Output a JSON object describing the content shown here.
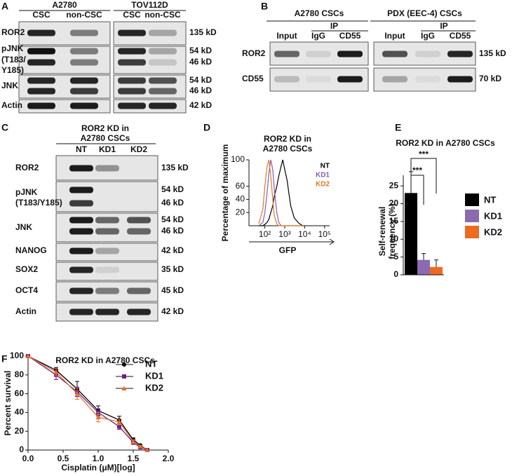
{
  "figure": {
    "a": {
      "letter": "A",
      "groups": [
        {
          "name": "A2780",
          "columns": [
            "CSC",
            "non-CSC"
          ]
        },
        {
          "name": "TOV112D",
          "columns": [
            "CSC",
            "non-CSC"
          ]
        }
      ],
      "rows": [
        {
          "label": [
            "ROR2"
          ],
          "sizes": [
            "135 kD"
          ]
        },
        {
          "label": [
            "pJNK",
            "(T183/",
            "Y185)"
          ],
          "sizes": [
            "54 kD",
            "46 kD"
          ]
        },
        {
          "label": [
            "JNK"
          ],
          "sizes": [
            "54 kD",
            "46 kD"
          ]
        },
        {
          "label": [
            "Actin"
          ],
          "sizes": [
            "42 kD"
          ]
        }
      ]
    },
    "b": {
      "letter": "B",
      "groups": [
        {
          "name": "A2780 CSCs",
          "ip": "IP",
          "columns": [
            "Input",
            "IgG",
            "CD55"
          ]
        },
        {
          "name": "PDX (EEC-4) CSCs",
          "ip": "IP",
          "columns": [
            "Input",
            "IgG",
            "CD55"
          ]
        }
      ],
      "rows": [
        {
          "label": [
            "ROR2"
          ],
          "sizes": [
            "135 kD"
          ]
        },
        {
          "label": [
            "CD55"
          ],
          "sizes": [
            "70 kD"
          ]
        }
      ]
    },
    "c": {
      "letter": "C",
      "title": [
        "ROR2 KD in",
        "A2780 CSCs"
      ],
      "columns": [
        "NT",
        "KD1",
        "KD2"
      ],
      "rows": [
        {
          "label": [
            "ROR2"
          ],
          "sizes": [
            "135 kD"
          ]
        },
        {
          "label": [
            "pJNK",
            "(T183/Y185)"
          ],
          "sizes": [
            "54 kD",
            "46 kD"
          ]
        },
        {
          "label": [
            "JNK"
          ],
          "sizes": [
            "54 kD",
            "46 kD"
          ]
        },
        {
          "label": [
            "NANOG"
          ],
          "sizes": [
            "42 kD"
          ]
        },
        {
          "label": [
            "SOX2"
          ],
          "sizes": [
            "35 kD"
          ]
        },
        {
          "label": [
            "OCT4"
          ],
          "sizes": [
            "45 kD"
          ]
        },
        {
          "label": [
            "Actin"
          ],
          "sizes": [
            "42 kD"
          ]
        }
      ]
    },
    "d": {
      "letter": "D"
    },
    "e": {
      "letter": "E"
    },
    "f": {
      "letter": "F"
    }
  },
  "chart_data": [
    {
      "type": "line",
      "title": [
        "ROR2 KD in",
        "A2780 CSCs"
      ],
      "xlabel": "GFP",
      "ylabel": "Percentage of maximum",
      "xscale": "log",
      "x": [
        50,
        80,
        100,
        130,
        160,
        200,
        250,
        300,
        400,
        500,
        650,
        800,
        1000,
        1300,
        1600,
        2000,
        3000,
        5000,
        8000
      ],
      "xlim": [
        16,
        180000
      ],
      "xticks": [
        {
          "value": 100,
          "label": "10²"
        },
        {
          "value": 1000,
          "label": "10³"
        },
        {
          "value": 10000,
          "label": "10⁴"
        },
        {
          "value": 100000,
          "label": "10⁵"
        }
      ],
      "ylim": [
        0,
        100
      ],
      "yticks": [
        20,
        40,
        60,
        100
      ],
      "series": [
        {
          "name": "NT",
          "color": "#000000",
          "values": [
            0,
            0,
            2,
            5,
            10,
            20,
            30,
            45,
            60,
            75,
            90,
            100,
            85,
            70,
            50,
            30,
            12,
            4,
            0
          ]
        },
        {
          "name": "KD1",
          "color": "#8a5bb5",
          "values": [
            0,
            5,
            20,
            50,
            80,
            100,
            85,
            55,
            20,
            5,
            0,
            0,
            0,
            0,
            0,
            0,
            0,
            0,
            0
          ]
        },
        {
          "name": "KD2",
          "color": "#e07a1f",
          "values": [
            3,
            25,
            60,
            90,
            100,
            75,
            40,
            15,
            3,
            0,
            0,
            0,
            0,
            0,
            0,
            0,
            0,
            0,
            0
          ]
        }
      ]
    },
    {
      "type": "bar",
      "title": "ROR2 KD in A2780 CSCs",
      "ylabel": [
        "Self-renewal",
        "frequency (%)"
      ],
      "ylim": [
        0,
        28
      ],
      "yticks": [
        0,
        5,
        10,
        15,
        20,
        25
      ],
      "annotations": [
        "***",
        "***"
      ],
      "series": [
        {
          "name": "NT",
          "color": "#000000",
          "values": [
            23
          ],
          "errors": [
            6
          ]
        },
        {
          "name": "KD1",
          "color": "#8a6bb0",
          "values": [
            4.2
          ],
          "errors": [
            1.8
          ]
        },
        {
          "name": "KD2",
          "color": "#ee6a1f",
          "values": [
            2.2
          ],
          "errors": [
            2
          ]
        }
      ]
    },
    {
      "type": "line",
      "title": "ROR2 KD in A2780 CSCs",
      "xlabel": "Cisplatin (μM)[log]",
      "ylabel": "Percent survival",
      "x": [
        0,
        0.4,
        0.7,
        1.0,
        1.3,
        1.5,
        1.6,
        1.7
      ],
      "xlim": [
        0,
        2
      ],
      "xticks": [
        {
          "value": 0,
          "label": "0.0"
        },
        0.5,
        {
          "value": 1,
          "label": "1.0"
        },
        1.5,
        {
          "value": 2,
          "label": "2.0"
        }
      ],
      "ylim": [
        0,
        100
      ],
      "yticks": [
        0,
        20,
        40,
        60,
        80,
        100
      ],
      "series": [
        {
          "name": "NT",
          "color": "#000000",
          "marker": "circle",
          "values": [
            100,
            85,
            65,
            42,
            32,
            11,
            5,
            0
          ],
          "errors": [
            0,
            3,
            8,
            5,
            4,
            2,
            1,
            0
          ]
        },
        {
          "name": "KD1",
          "color": "#6a1f8a",
          "marker": "square",
          "values": [
            100,
            80,
            62,
            40,
            25,
            8,
            3,
            0
          ],
          "errors": [
            0,
            5,
            5,
            4,
            3,
            2,
            1,
            0
          ]
        },
        {
          "name": "KD2",
          "color": "#e8702a",
          "marker": "triangle",
          "values": [
            100,
            83,
            60,
            35,
            30,
            9,
            4,
            0
          ],
          "errors": [
            0,
            4,
            6,
            5,
            3,
            2,
            1,
            0
          ]
        }
      ]
    }
  ]
}
